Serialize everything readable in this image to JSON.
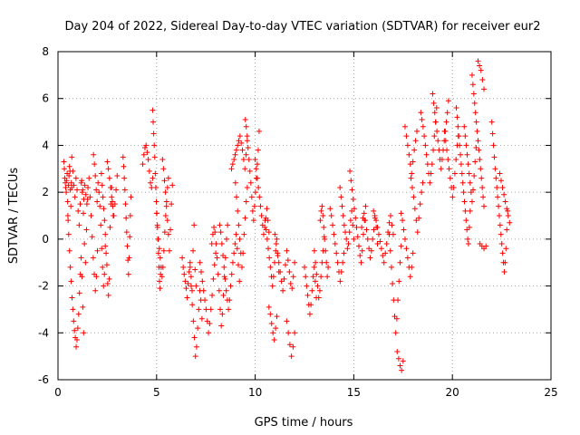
{
  "chart_data": {
    "type": "scatter",
    "title": "Day 204 of 2022, Sidereal Day-to-day VTEC variation (SDTVAR) for receiver eur2",
    "xlabel": "GPS time / hours",
    "ylabel": "SDTVAR / TECUs",
    "xlim": [
      0,
      25
    ],
    "ylim": [
      -6,
      8
    ],
    "xticks": [
      0,
      5,
      10,
      15,
      20,
      25
    ],
    "yticks": [
      -6,
      -4,
      -2,
      0,
      2,
      4,
      6,
      8
    ],
    "grid": true,
    "marker": "+",
    "color": "#ff0000",
    "series": [
      {
        "name": "SDTVAR",
        "segments": [
          {
            "x0": 0.3,
            "x1": 0.7,
            "ys": [
              3.3,
              3.0,
              2.6,
              2.4,
              2.2,
              2.0,
              2.5,
              2.8,
              1.6,
              0.8,
              2.3,
              2.7,
              3.1,
              2.9,
              2.1,
              1.4,
              2.4,
              2.2
            ]
          },
          {
            "x0": 0.5,
            "x1": 1.3,
            "ys": [
              1.0,
              0.2,
              -0.5,
              -1.2,
              -1.8,
              -2.5,
              -3.0,
              -3.5,
              -3.9,
              -4.2,
              -4.6,
              -4.3,
              -3.8,
              -3.2,
              -2.3,
              -1.5,
              -0.8,
              -1.6,
              -2.9,
              -4.0
            ]
          },
          {
            "x0": 0.7,
            "x1": 1.5,
            "ys": [
              3.5,
              2.9,
              2.3,
              1.8,
              2.6,
              2.1,
              1.2,
              0.6,
              1.5,
              2.4,
              2.0,
              1.1,
              -0.2,
              -1.0,
              0.4,
              1.7
            ]
          },
          {
            "x0": 1.2,
            "x1": 2.0,
            "ys": [
              2.5,
              2.1,
              1.7,
              2.3,
              1.9,
              1.5,
              2.2,
              2.6,
              1.8,
              1.0,
              0.1,
              -0.8,
              -1.5,
              -2.2,
              -1.6,
              -0.5
            ]
          },
          {
            "x0": 1.8,
            "x1": 2.4,
            "ys": [
              3.6,
              3.2,
              2.7,
              2.1,
              1.6,
              2.4,
              2.0,
              1.4,
              0.6,
              -0.4,
              -1.2,
              -2.0,
              -1.5,
              -0.3
            ]
          },
          {
            "x0": 2.2,
            "x1": 2.8,
            "ys": [
              2.8,
              2.3,
              1.8,
              1.3,
              0.8,
              0.2,
              -0.6,
              -1.1,
              -1.9,
              -2.4,
              -1.7,
              0.5,
              1.5,
              2.2,
              1.6,
              1.0
            ]
          },
          {
            "x0": 2.5,
            "x1": 3.0,
            "ys": [
              3.3,
              3.0,
              2.6,
              2.2,
              1.8,
              1.4,
              1.0,
              1.5,
              2.1,
              2.7
            ]
          },
          {
            "x0": 3.3,
            "x1": 3.7,
            "ys": [
              3.5,
              3.1,
              2.6,
              2.1,
              1.5,
              0.9,
              0.3,
              -0.3,
              -0.9,
              -1.5,
              -0.8,
              0.1,
              1.0,
              1.8
            ]
          },
          {
            "x0": 4.3,
            "x1": 4.8,
            "ys": [
              3.2,
              3.6,
              3.9,
              4.0,
              3.7,
              3.4,
              2.9,
              2.4,
              2.2,
              2.6
            ]
          },
          {
            "x0": 4.8,
            "x1": 5.2,
            "ys": [
              5.5,
              5.0,
              4.5,
              4.0,
              3.5,
              2.8,
              2.2,
              1.6,
              1.1,
              0.6,
              0.0,
              -0.6,
              -1.2,
              -1.8,
              -2.1,
              -1.5
            ]
          },
          {
            "x0": 5.0,
            "x1": 5.6,
            "ys": [
              1.1,
              0.5,
              0.0,
              -0.4,
              -0.8,
              -1.2,
              -1.6,
              -1.2,
              -0.5,
              0.3,
              1.0,
              1.6,
              2.2,
              2.6
            ]
          },
          {
            "x0": 5.3,
            "x1": 5.8,
            "ys": [
              3.4,
              3.0,
              2.5,
              2.0,
              1.4,
              0.8,
              0.2,
              -0.5,
              0.4,
              1.5,
              2.3
            ]
          },
          {
            "x0": 6.3,
            "x1": 7.0,
            "ys": [
              -0.8,
              -1.2,
              -1.5,
              -1.8,
              -2.1,
              -2.5,
              -1.9,
              -1.4,
              -1.0,
              -1.6,
              -2.2,
              -0.5,
              0.6,
              -1.3,
              -2.0
            ]
          },
          {
            "x0": 6.7,
            "x1": 7.3,
            "ys": [
              -1.2,
              -2.0,
              -2.8,
              -3.5,
              -4.2,
              -5.0,
              -4.6,
              -3.8,
              -3.0,
              -2.2,
              -2.6,
              -3.4
            ]
          },
          {
            "x0": 7.2,
            "x1": 8.0,
            "ys": [
              -1.0,
              -1.4,
              -1.8,
              -2.2,
              -2.6,
              -3.0,
              -3.5,
              -4.0,
              -3.6,
              -3.0,
              -2.4,
              -1.7,
              -1.1,
              -0.6
            ]
          },
          {
            "x0": 7.8,
            "x1": 8.6,
            "ys": [
              -0.2,
              0.2,
              0.5,
              0.3,
              -0.2,
              -0.8,
              -1.5,
              -2.2,
              -3.0,
              -3.7,
              -3.2,
              -2.4,
              -1.6,
              -0.8,
              0.0,
              0.6
            ]
          },
          {
            "x0": 8.2,
            "x1": 9.2,
            "ys": [
              0.6,
              0.3,
              -0.2,
              -0.7,
              -1.2,
              -1.7,
              -2.2,
              -2.6,
              -3.0,
              -2.6,
              -2.0,
              -1.5,
              -1.0,
              -0.6,
              -0.2,
              0.2,
              -0.4,
              -1.1,
              -1.8
            ]
          },
          {
            "x0": 8.8,
            "x1": 9.6,
            "ys": [
              3.0,
              3.2,
              3.4,
              3.6,
              3.8,
              4.0,
              4.2,
              4.4,
              4.1,
              3.8,
              3.4,
              3.0,
              3.6,
              4.2
            ]
          },
          {
            "x0": 9.0,
            "x1": 9.6,
            "ys": [
              2.4,
              1.8,
              1.2,
              0.6,
              0.0,
              -0.6,
              -1.2,
              -0.6,
              0.2,
              0.9,
              1.6,
              2.2
            ]
          },
          {
            "x0": 9.5,
            "x1": 10.2,
            "ys": [
              5.1,
              4.8,
              4.4,
              3.9,
              3.4,
              2.9,
              2.4,
              1.8,
              1.2,
              0.8,
              1.4,
              2.0,
              2.6,
              3.2,
              3.8,
              4.6
            ]
          },
          {
            "x0": 10.0,
            "x1": 10.7,
            "ys": [
              3.4,
              3.0,
              2.6,
              2.2,
              1.8,
              1.4,
              1.0,
              0.6,
              0.2,
              0.5,
              0.9,
              1.3,
              0.8,
              0.3
            ]
          },
          {
            "x0": 10.5,
            "x1": 11.2,
            "ys": [
              0.8,
              0.4,
              0.0,
              -0.4,
              -0.8,
              -1.2,
              -1.6,
              -2.0,
              -1.6,
              -1.0,
              -0.5,
              0.0,
              -0.7,
              -1.4
            ]
          },
          {
            "x0": 10.7,
            "x1": 11.1,
            "ys": [
              -2.9,
              -3.2,
              -3.6,
              -4.0,
              -4.3,
              -3.8,
              -3.3
            ]
          },
          {
            "x0": 11.0,
            "x1": 12.0,
            "ys": [
              0.2,
              -0.2,
              -0.6,
              -1.0,
              -1.4,
              -1.8,
              -2.2,
              -1.7,
              -1.1,
              -0.5,
              -0.9,
              -1.4,
              -1.9,
              -2.1,
              -1.6,
              -1.0
            ]
          },
          {
            "x0": 11.6,
            "x1": 12.0,
            "ys": [
              -3.5,
              -4.0,
              -4.5,
              -5.0,
              -4.6,
              -4.0
            ]
          },
          {
            "x0": 12.5,
            "x1": 13.1,
            "ys": [
              -1.2,
              -1.6,
              -2.0,
              -2.4,
              -2.8,
              -3.2,
              -2.8,
              -2.2,
              -1.6,
              -1.2,
              -1.8,
              -2.5
            ]
          },
          {
            "x0": 13.0,
            "x1": 13.5,
            "ys": [
              -0.5,
              -1.0,
              -1.5,
              -2.0,
              -2.5,
              -2.2,
              -1.6,
              -1.0,
              -0.5,
              0.1
            ]
          },
          {
            "x0": 13.3,
            "x1": 13.7,
            "ys": [
              0.8,
              1.2,
              1.4,
              1.0,
              0.5,
              0.0,
              -0.5,
              -1.0,
              -1.6,
              -1.2
            ]
          },
          {
            "x0": 13.8,
            "x1": 14.5,
            "ys": [
              1.3,
              1.0,
              0.6,
              0.2,
              -0.2,
              -0.6,
              -1.0,
              -1.4,
              -1.8,
              -1.4,
              -1.0,
              -0.6
            ]
          },
          {
            "x0": 14.3,
            "x1": 15.0,
            "ys": [
              2.2,
              1.8,
              1.4,
              1.0,
              0.6,
              0.3,
              0.0,
              -0.4,
              -0.2,
              0.3,
              0.8,
              1.2,
              0.6,
              0.0
            ]
          },
          {
            "x0": 14.8,
            "x1": 15.6,
            "ys": [
              2.9,
              2.5,
              2.1,
              1.7,
              1.3,
              0.9,
              0.5,
              0.1,
              -0.3,
              -0.7,
              -1.0,
              -0.5,
              0.2,
              0.8,
              1.4
            ]
          },
          {
            "x0": 15.4,
            "x1": 16.2,
            "ys": [
              0.5,
              0.9,
              1.1,
              0.8,
              0.4,
              0.0,
              -0.4,
              -0.8,
              -0.5,
              0.0,
              0.4,
              0.9,
              0.5,
              -0.2
            ]
          },
          {
            "x0": 16.0,
            "x1": 17.0,
            "ys": [
              1.2,
              1.0,
              0.8,
              0.5,
              0.2,
              -0.1,
              -0.4,
              -0.7,
              -1.0,
              -0.6,
              -0.2,
              0.3,
              0.7,
              1.0,
              0.6,
              0.2
            ]
          },
          {
            "x0": 16.8,
            "x1": 17.4,
            "ys": [
              0.2,
              -0.5,
              -1.2,
              -1.9,
              -2.6,
              -3.3,
              -4.0,
              -3.4,
              -2.6,
              -1.8,
              -1.0,
              -0.3
            ]
          },
          {
            "x0": 17.2,
            "x1": 17.5,
            "ys": [
              -4.8,
              -5.1,
              -5.4,
              -5.6,
              -5.2
            ]
          },
          {
            "x0": 17.4,
            "x1": 18.0,
            "ys": [
              1.1,
              0.8,
              0.4,
              0.0,
              -0.4,
              -0.8,
              -1.2,
              -1.6,
              -1.2,
              -0.6
            ]
          },
          {
            "x0": 17.9,
            "x1": 18.5,
            "ys": [
              2.6,
              2.2,
              1.8,
              1.3,
              0.8,
              0.3,
              0.9,
              1.5,
              2.0,
              2.4
            ]
          },
          {
            "x0": 17.6,
            "x1": 18.2,
            "ys": [
              4.8,
              4.4,
              4.0,
              3.6,
              3.2,
              2.8,
              3.3,
              3.8,
              4.2,
              4.6
            ]
          },
          {
            "x0": 18.4,
            "x1": 19.2,
            "ys": [
              5.4,
              5.1,
              4.8,
              4.4,
              4.0,
              3.6,
              3.2,
              2.8,
              2.4,
              2.8,
              3.2,
              3.8,
              4.4,
              5.0,
              5.6
            ]
          },
          {
            "x0": 19.0,
            "x1": 19.8,
            "ys": [
              6.2,
              5.8,
              5.4,
              5.0,
              4.6,
              4.2,
              3.8,
              3.4,
              3.0,
              3.4,
              3.8,
              4.2,
              4.6,
              5.0,
              5.4,
              5.9
            ]
          },
          {
            "x0": 19.6,
            "x1": 20.3,
            "ys": [
              4.6,
              4.2,
              3.8,
              3.4,
              3.0,
              2.6,
              2.2,
              1.8,
              2.2,
              2.8,
              3.4,
              4.0,
              4.4
            ]
          },
          {
            "x0": 20.2,
            "x1": 20.9,
            "ys": [
              5.6,
              5.2,
              4.8,
              4.4,
              4.0,
              3.6,
              3.2,
              2.8,
              2.4,
              2.0,
              1.6,
              1.2,
              0.8,
              0.4,
              0.0,
              -0.2,
              0.5,
              1.2
            ]
          },
          {
            "x0": 20.6,
            "x1": 21.2,
            "ys": [
              4.8,
              4.4,
              4.0,
              3.6,
              3.2,
              2.8,
              2.4,
              2.0,
              1.6,
              2.1,
              2.7,
              3.3,
              3.9
            ]
          },
          {
            "x0": 21.0,
            "x1": 21.6,
            "ys": [
              7.0,
              6.6,
              6.2,
              5.8,
              5.4,
              5.0,
              4.6,
              4.2,
              3.8,
              3.4,
              3.0,
              2.6,
              2.2,
              1.8,
              1.4
            ]
          },
          {
            "x0": 21.3,
            "x1": 21.6,
            "ys": [
              7.6,
              7.4,
              7.2,
              6.8,
              6.4
            ]
          },
          {
            "x0": 21.4,
            "x1": 21.7,
            "ys": [
              -0.2,
              -0.3,
              -0.4,
              -0.3
            ]
          },
          {
            "x0": 22.0,
            "x1": 22.8,
            "ys": [
              5.0,
              4.5,
              4.0,
              3.5,
              3.0,
              2.6,
              2.2,
              1.8,
              1.4,
              1.0,
              0.6,
              0.2,
              -0.2,
              -0.6,
              -1.0,
              -1.4,
              -1.0,
              -0.4,
              0.4,
              1.2
            ]
          },
          {
            "x0": 22.4,
            "x1": 22.9,
            "ys": [
              2.8,
              2.5,
              2.2,
              1.9,
              1.6,
              1.3,
              1.0,
              0.7
            ]
          }
        ]
      }
    ]
  }
}
